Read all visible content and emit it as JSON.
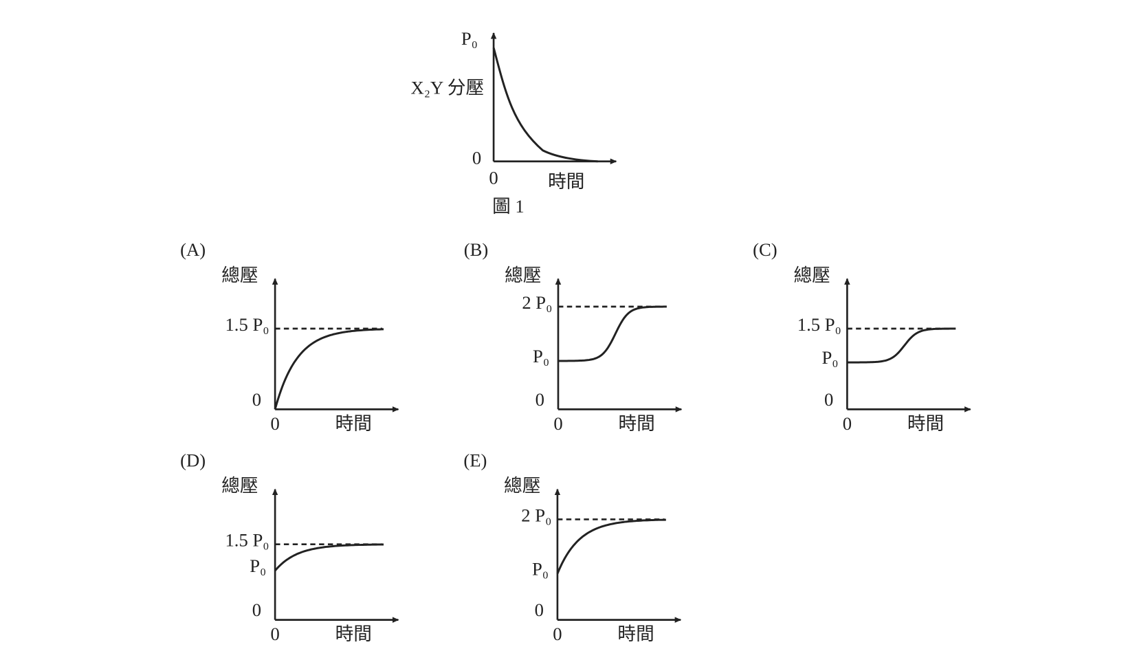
{
  "figure1": {
    "y_top": "P₀",
    "y_label": "X₂Y 分壓",
    "y_zero": "0",
    "x_zero": "0",
    "x_label": "時間",
    "caption": "圖 1"
  },
  "options": [
    {
      "letter": "(A)",
      "y_label": "總壓",
      "final_level": "1.5 P₀",
      "y_zero": "0",
      "x_zero": "0",
      "x_label": "時間"
    },
    {
      "letter": "(B)",
      "y_label": "總壓",
      "final_level": "2 P₀",
      "start_level": "P₀",
      "y_zero": "0",
      "x_zero": "0",
      "x_label": "時間"
    },
    {
      "letter": "(C)",
      "y_label": "總壓",
      "final_level": "1.5 P₀",
      "start_level": "P₀",
      "y_zero": "0",
      "x_zero": "0",
      "x_label": "時間"
    },
    {
      "letter": "(D)",
      "y_label": "總壓",
      "final_level": "1.5 P₀",
      "start_level": "P₀",
      "y_zero": "0",
      "x_zero": "0",
      "x_label": "時間"
    },
    {
      "letter": "(E)",
      "y_label": "總壓",
      "final_level": "2 P₀",
      "start_level": "P₀",
      "y_zero": "0",
      "x_zero": "0",
      "x_label": "時間"
    }
  ]
}
